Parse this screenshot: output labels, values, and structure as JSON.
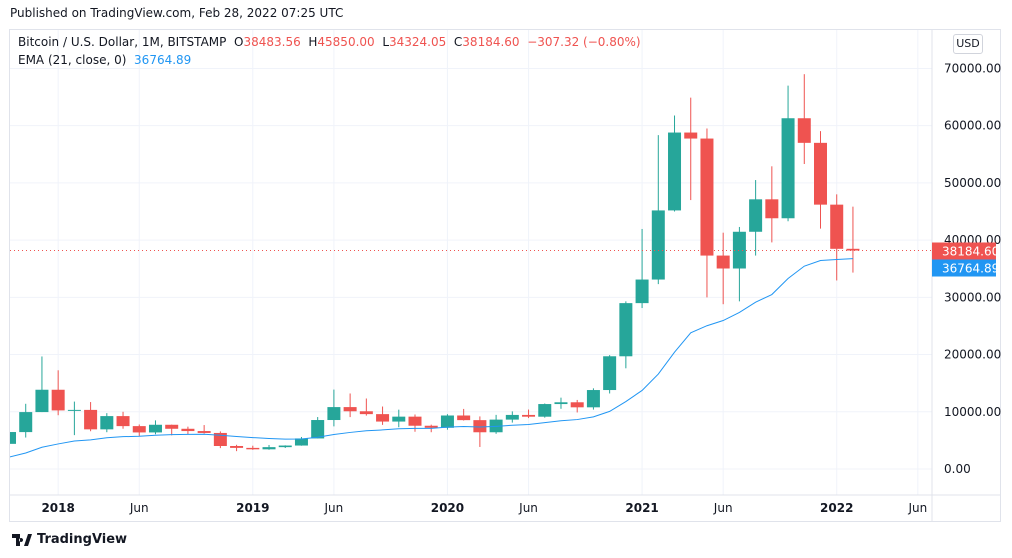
{
  "published": "Published on TradingView.com, Feb 28, 2022 07:25 UTC",
  "legend": {
    "symbol": "Bitcoin / U.S. Dollar, 1M, BITSTAMP",
    "o_label": "O",
    "o": "38483.56",
    "h_label": "H",
    "h": "45850.00",
    "l_label": "L",
    "l": "34324.05",
    "c_label": "C",
    "c": "38184.60",
    "change": "−307.32 (−0.80%)",
    "ema_label": "EMA (21, close, 0)",
    "ema_value": "36764.89"
  },
  "currency_button": "USD",
  "footer_logo": "TradingView",
  "colors": {
    "up": "#26a69a",
    "down": "#ef5350",
    "ema": "#2196f3",
    "grid": "#f0f3fa"
  },
  "chart_data": {
    "type": "candlestick",
    "interval": "1M",
    "ylim": [
      -4000,
      70000
    ],
    "y_ticks": [
      "0.00",
      "10000.00",
      "20000.00",
      "30000.00",
      "40000.00",
      "50000.00",
      "60000.00",
      "70000.00"
    ],
    "x_ticks": [
      "2018",
      "Jun",
      "2019",
      "Jun",
      "2020",
      "Jun",
      "2021",
      "Jun",
      "2022",
      "Jun"
    ],
    "last_price_label": "38184.60",
    "ema_label_value": "36764.89",
    "grid": true,
    "candles": [
      {
        "t": "2017-10",
        "o": 4395,
        "h": 6470,
        "l": 4110,
        "c": 6460
      },
      {
        "t": "2017-11",
        "o": 6450,
        "h": 11395,
        "l": 5500,
        "c": 9947
      },
      {
        "t": "2017-12",
        "o": 9947,
        "h": 19666,
        "l": 9950,
        "c": 13850
      },
      {
        "t": "2018-01",
        "o": 13850,
        "h": 17250,
        "l": 9400,
        "c": 10240
      },
      {
        "t": "2018-02",
        "o": 10240,
        "h": 11780,
        "l": 5920,
        "c": 10330
      },
      {
        "t": "2018-03",
        "o": 10330,
        "h": 11700,
        "l": 6600,
        "c": 6930
      },
      {
        "t": "2018-04",
        "o": 6930,
        "h": 9760,
        "l": 6430,
        "c": 9245
      },
      {
        "t": "2018-05",
        "o": 9245,
        "h": 10000,
        "l": 7040,
        "c": 7495
      },
      {
        "t": "2018-06",
        "o": 7495,
        "h": 7780,
        "l": 5780,
        "c": 6390
      },
      {
        "t": "2018-07",
        "o": 6390,
        "h": 8500,
        "l": 6070,
        "c": 7730
      },
      {
        "t": "2018-08",
        "o": 7730,
        "h": 7750,
        "l": 5880,
        "c": 7030
      },
      {
        "t": "2018-09",
        "o": 7030,
        "h": 7400,
        "l": 6100,
        "c": 6630
      },
      {
        "t": "2018-10",
        "o": 6630,
        "h": 7680,
        "l": 6200,
        "c": 6300
      },
      {
        "t": "2018-11",
        "o": 6300,
        "h": 6570,
        "l": 3650,
        "c": 4020
      },
      {
        "t": "2018-12",
        "o": 4020,
        "h": 4230,
        "l": 3120,
        "c": 3690
      },
      {
        "t": "2019-01",
        "o": 3690,
        "h": 4070,
        "l": 3350,
        "c": 3440
      },
      {
        "t": "2019-02",
        "o": 3440,
        "h": 4200,
        "l": 3360,
        "c": 3820
      },
      {
        "t": "2019-03",
        "o": 3820,
        "h": 4140,
        "l": 3670,
        "c": 4100
      },
      {
        "t": "2019-04",
        "o": 4100,
        "h": 5600,
        "l": 4070,
        "c": 5340
      },
      {
        "t": "2019-05",
        "o": 5340,
        "h": 9080,
        "l": 5330,
        "c": 8560
      },
      {
        "t": "2019-06",
        "o": 8560,
        "h": 13880,
        "l": 7450,
        "c": 10820
      },
      {
        "t": "2019-07",
        "o": 10820,
        "h": 13200,
        "l": 9070,
        "c": 10090
      },
      {
        "t": "2019-08",
        "o": 10090,
        "h": 12320,
        "l": 9330,
        "c": 9590
      },
      {
        "t": "2019-09",
        "o": 9590,
        "h": 10920,
        "l": 7710,
        "c": 8290
      },
      {
        "t": "2019-10",
        "o": 8290,
        "h": 10370,
        "l": 7300,
        "c": 9150
      },
      {
        "t": "2019-11",
        "o": 9150,
        "h": 9520,
        "l": 6520,
        "c": 7560
      },
      {
        "t": "2019-12",
        "o": 7560,
        "h": 7750,
        "l": 6430,
        "c": 7200
      },
      {
        "t": "2020-01",
        "o": 7200,
        "h": 9580,
        "l": 6870,
        "c": 9350
      },
      {
        "t": "2020-02",
        "o": 9350,
        "h": 10500,
        "l": 8470,
        "c": 8540
      },
      {
        "t": "2020-03",
        "o": 8540,
        "h": 9190,
        "l": 3850,
        "c": 6420
      },
      {
        "t": "2020-04",
        "o": 6420,
        "h": 9460,
        "l": 6150,
        "c": 8630
      },
      {
        "t": "2020-05",
        "o": 8630,
        "h": 10070,
        "l": 8110,
        "c": 9450
      },
      {
        "t": "2020-06",
        "o": 9450,
        "h": 10390,
        "l": 8900,
        "c": 9140
      },
      {
        "t": "2020-07",
        "o": 9140,
        "h": 11450,
        "l": 8970,
        "c": 11350
      },
      {
        "t": "2020-08",
        "o": 11350,
        "h": 12470,
        "l": 10520,
        "c": 11660
      },
      {
        "t": "2020-09",
        "o": 11660,
        "h": 12070,
        "l": 9880,
        "c": 10780
      },
      {
        "t": "2020-10",
        "o": 10780,
        "h": 14100,
        "l": 10380,
        "c": 13800
      },
      {
        "t": "2020-11",
        "o": 13800,
        "h": 19900,
        "l": 13200,
        "c": 19700
      },
      {
        "t": "2020-12",
        "o": 19700,
        "h": 29300,
        "l": 17600,
        "c": 28990
      },
      {
        "t": "2021-01",
        "o": 28990,
        "h": 41950,
        "l": 28130,
        "c": 33110
      },
      {
        "t": "2021-02",
        "o": 33110,
        "h": 58350,
        "l": 32300,
        "c": 45190
      },
      {
        "t": "2021-03",
        "o": 45190,
        "h": 61780,
        "l": 45000,
        "c": 58800
      },
      {
        "t": "2021-04",
        "o": 58800,
        "h": 64900,
        "l": 47000,
        "c": 57750
      },
      {
        "t": "2021-05",
        "o": 57750,
        "h": 59500,
        "l": 30000,
        "c": 37300
      },
      {
        "t": "2021-06",
        "o": 37300,
        "h": 41300,
        "l": 28800,
        "c": 35040
      },
      {
        "t": "2021-07",
        "o": 35040,
        "h": 42300,
        "l": 29300,
        "c": 41460
      },
      {
        "t": "2021-08",
        "o": 41460,
        "h": 50500,
        "l": 37300,
        "c": 47130
      },
      {
        "t": "2021-09",
        "o": 47130,
        "h": 52900,
        "l": 39600,
        "c": 43820
      },
      {
        "t": "2021-10",
        "o": 43820,
        "h": 67000,
        "l": 43300,
        "c": 61300
      },
      {
        "t": "2021-11",
        "o": 61300,
        "h": 69000,
        "l": 53300,
        "c": 57000
      },
      {
        "t": "2021-12",
        "o": 57000,
        "h": 59050,
        "l": 42000,
        "c": 46200
      },
      {
        "t": "2022-01",
        "o": 46200,
        "h": 48000,
        "l": 32950,
        "c": 38480
      },
      {
        "t": "2022-02",
        "o": 38483.56,
        "h": 45850,
        "l": 34324.05,
        "c": 38184.6
      }
    ],
    "ema21": [
      2100,
      2800,
      3800,
      4380,
      4900,
      5090,
      5470,
      5650,
      5720,
      5900,
      6000,
      6060,
      6080,
      5890,
      5690,
      5490,
      5340,
      5230,
      5240,
      5540,
      6020,
      6390,
      6680,
      6830,
      7040,
      7090,
      7110,
      7320,
      7430,
      7340,
      7460,
      7640,
      7780,
      8110,
      8430,
      8640,
      9110,
      10070,
      11790,
      13730,
      16590,
      20420,
      23810,
      25040,
      25950,
      27360,
      29160,
      30490,
      33290,
      35450,
      36430,
      36620,
      36764.89
    ]
  }
}
